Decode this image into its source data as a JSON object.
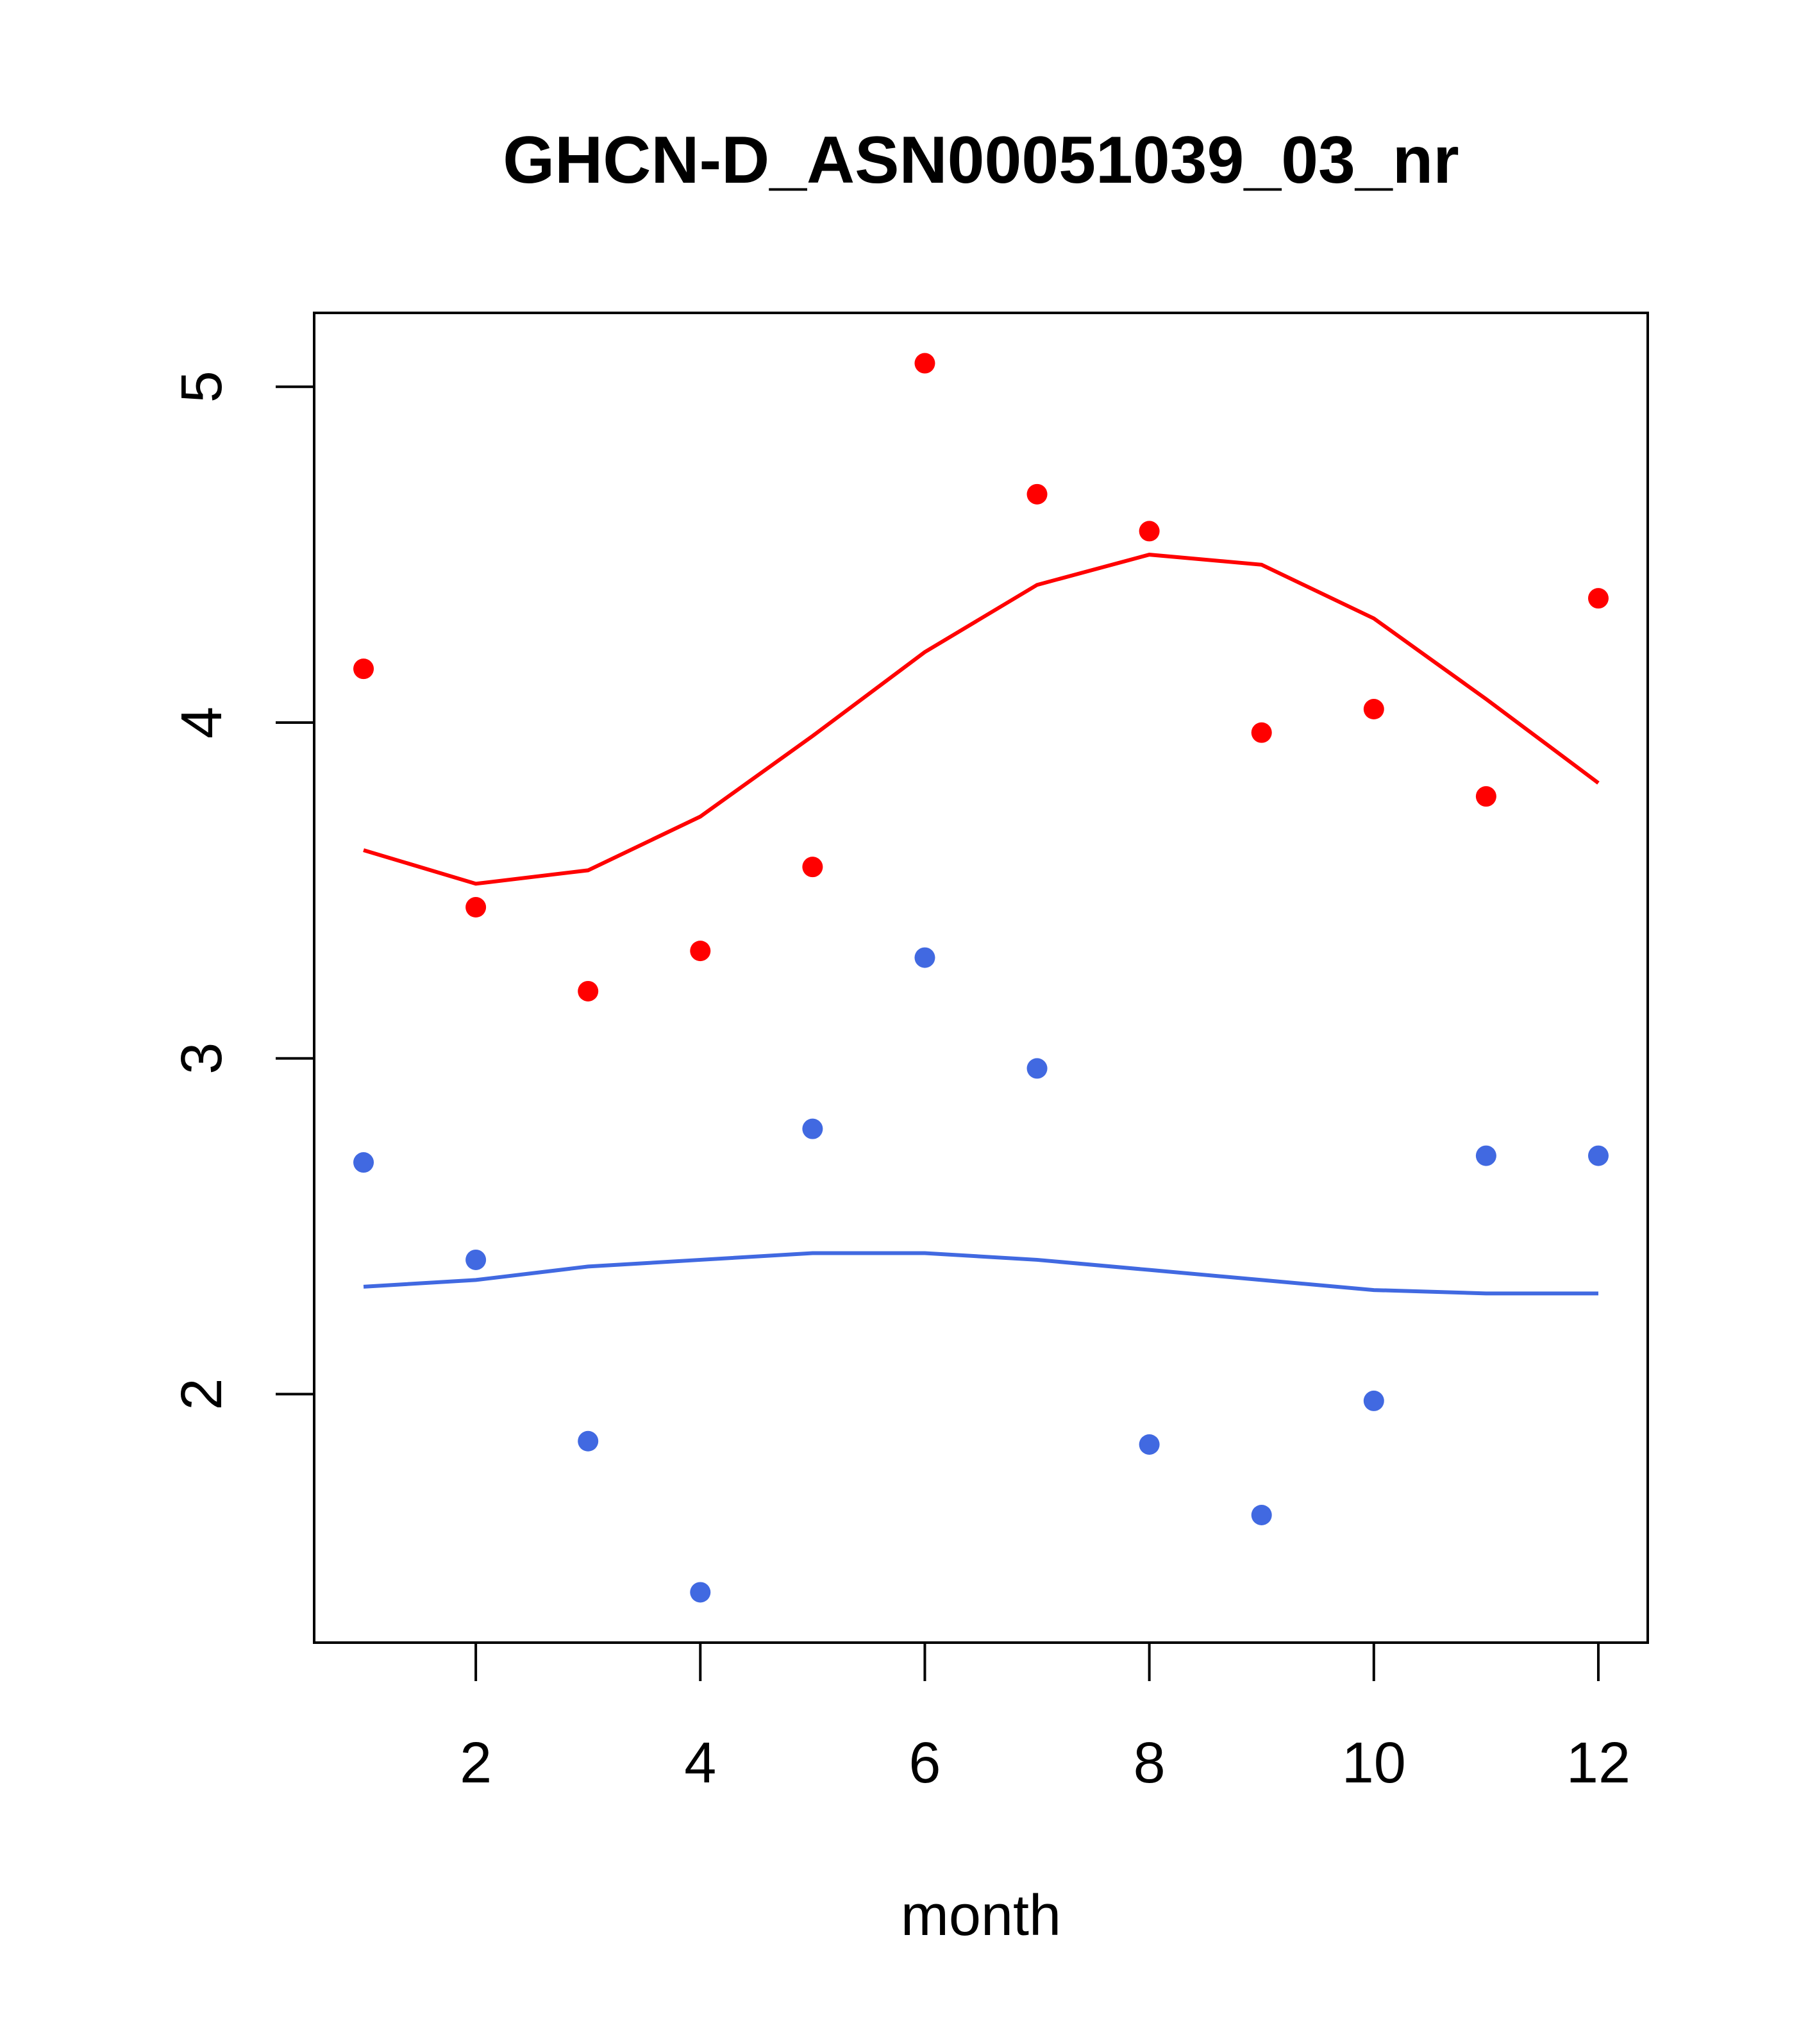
{
  "chart_data": {
    "type": "scatter",
    "title": "GHCN-D_ASN00051039_03_nr",
    "xlabel": "month",
    "ylabel": "",
    "xlim": [
      0.56,
      12.44
    ],
    "ylim": [
      1.26,
      5.22
    ],
    "xticks": [
      2,
      4,
      6,
      8,
      10,
      12
    ],
    "yticks": [
      2,
      3,
      4,
      5
    ],
    "x": [
      1,
      2,
      3,
      4,
      5,
      6,
      7,
      8,
      9,
      10,
      11,
      12
    ],
    "series": [
      {
        "name": "red points",
        "kind": "points",
        "color": "#ff0000",
        "values": [
          4.16,
          3.45,
          3.2,
          3.32,
          3.57,
          5.07,
          4.68,
          4.57,
          3.97,
          4.04,
          3.78,
          4.37
        ]
      },
      {
        "name": "red line",
        "kind": "line",
        "color": "#ff0000",
        "values": [
          3.62,
          3.52,
          3.56,
          3.72,
          3.96,
          4.21,
          4.41,
          4.5,
          4.47,
          4.31,
          4.07,
          3.82
        ]
      },
      {
        "name": "blue points",
        "kind": "points",
        "color": "#4169e1",
        "values": [
          2.69,
          2.4,
          1.86,
          1.41,
          2.79,
          3.3,
          2.97,
          1.85,
          1.64,
          1.98,
          2.71,
          2.71
        ]
      },
      {
        "name": "blue line",
        "kind": "line",
        "color": "#4169e1",
        "values": [
          2.32,
          2.34,
          2.38,
          2.4,
          2.42,
          2.42,
          2.4,
          2.37,
          2.34,
          2.31,
          2.3,
          2.3
        ]
      }
    ],
    "grid": false,
    "legend": "none"
  }
}
